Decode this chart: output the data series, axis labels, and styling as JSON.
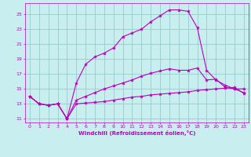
{
  "bg_color": "#c8eef0",
  "grid_color": "#99cccc",
  "line_color": "#bb00bb",
  "ylim": [
    10.5,
    26.5
  ],
  "xlim": [
    -0.5,
    23.5
  ],
  "yticks": [
    11,
    13,
    15,
    17,
    19,
    21,
    23,
    25
  ],
  "xticks": [
    0,
    1,
    2,
    3,
    4,
    5,
    6,
    7,
    8,
    9,
    10,
    11,
    12,
    13,
    14,
    15,
    16,
    17,
    18,
    19,
    20,
    21,
    22,
    23
  ],
  "xlabel": "Windchill (Refroidissement éolien,°C)",
  "lines": [
    [
      14.0,
      13.0,
      12.8,
      13.0,
      11.0,
      13.0,
      13.1,
      13.2,
      13.3,
      13.5,
      13.7,
      13.9,
      14.0,
      14.2,
      14.3,
      14.4,
      14.5,
      14.6,
      14.8,
      14.9,
      15.0,
      15.1,
      15.2,
      14.4
    ],
    [
      14.0,
      13.0,
      12.8,
      13.0,
      11.0,
      13.5,
      14.0,
      14.5,
      15.0,
      15.4,
      15.8,
      16.2,
      16.7,
      17.1,
      17.4,
      17.7,
      17.5,
      17.5,
      17.8,
      16.2,
      16.3,
      15.2,
      15.0,
      15.0
    ],
    [
      14.0,
      13.0,
      12.8,
      13.0,
      11.0,
      15.8,
      18.3,
      19.3,
      19.8,
      20.5,
      22.0,
      22.5,
      23.0,
      24.0,
      24.8,
      25.6,
      25.6,
      25.4,
      23.2,
      17.5,
      16.2,
      15.5,
      15.0,
      14.5
    ]
  ]
}
